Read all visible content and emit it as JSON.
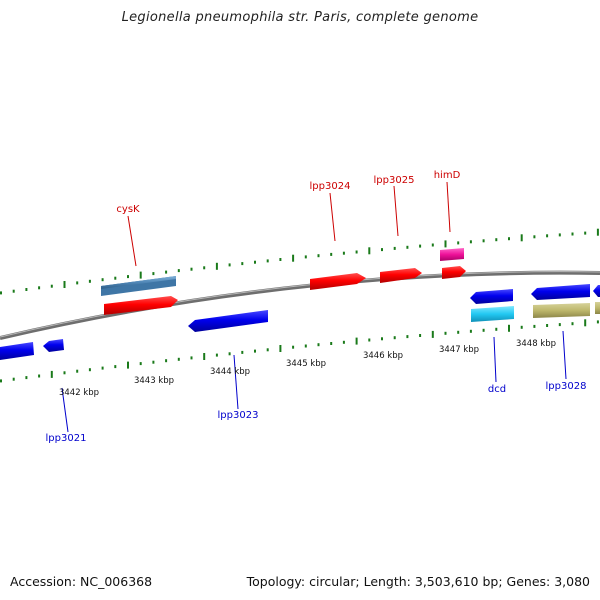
{
  "title": "Legionella pneumophila str. Paris, complete genome",
  "footer": {
    "accession": "Accession: NC_006368",
    "stats": "Topology: circular; Length: 3,503,610 bp; Genes: 3,080"
  },
  "colors": {
    "forward_label": "#cc0000",
    "reverse_label": "#0000cc",
    "tick": "#1a7a1a",
    "backbone": "#808080"
  },
  "scale_labels": [
    "3442 kbp",
    "3443 kbp",
    "3444 kbp",
    "3445 kbp",
    "3446 kbp",
    "3447 kbp",
    "3448 kbp"
  ],
  "labels": {
    "cysK": "cysK",
    "lpp3024": "lpp3024",
    "lpp3025": "lpp3025",
    "himD": "himD",
    "lpp3021": "lpp3021",
    "lpp3023": "lpp3023",
    "dcd": "dcd",
    "lpp3028": "lpp3028"
  }
}
